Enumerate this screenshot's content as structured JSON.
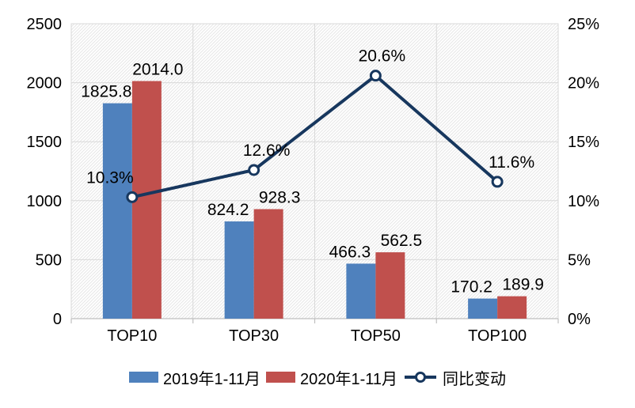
{
  "chart_data": {
    "type": "bar",
    "subtype": "combo-bar-line-dual-axis",
    "categories": [
      "TOP10",
      "TOP30",
      "TOP50",
      "TOP100"
    ],
    "series": [
      {
        "name": "2019年1-11月",
        "type": "bar",
        "axis": "left",
        "color": "#4F81BD",
        "values": [
          1825.8,
          824.2,
          466.3,
          170.2
        ],
        "labels": [
          "1825.8",
          "824.2",
          "466.3",
          "170.2"
        ]
      },
      {
        "name": "2020年1-11月",
        "type": "bar",
        "axis": "left",
        "color": "#C0504D",
        "values": [
          2014.0,
          928.3,
          562.5,
          189.9
        ],
        "labels": [
          "2014.0",
          "928.3",
          "562.5",
          "189.9"
        ]
      },
      {
        "name": "同比变动",
        "type": "line",
        "axis": "right",
        "color": "#17375E",
        "marker": "open-circle",
        "values": [
          10.3,
          12.6,
          20.6,
          11.6
        ],
        "labels": [
          "10.3%",
          "12.6%",
          "20.6%",
          "11.6%"
        ]
      }
    ],
    "left_axis": {
      "min": 0,
      "max": 2500,
      "step": 500,
      "ticks": [
        "0",
        "500",
        "1000",
        "1500",
        "2000",
        "2500"
      ]
    },
    "right_axis": {
      "min": 0,
      "max": 25,
      "step": 5,
      "ticks": [
        "0%",
        "5%",
        "10%",
        "15%",
        "20%",
        "25%"
      ]
    },
    "grid": true,
    "legend_position": "bottom",
    "plot_background": "diagonal-hatch",
    "colors": {
      "gridline": "#D9D9D9",
      "axis_line": "#BFBFBF",
      "hatch_line": "#E7E7E7",
      "text": "#000000",
      "background": "#FFFFFF"
    }
  }
}
